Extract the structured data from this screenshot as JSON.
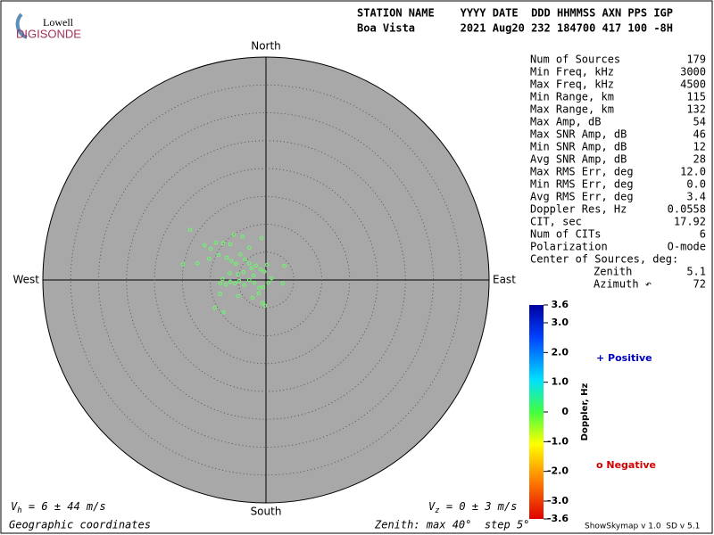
{
  "logo": {
    "top": "Lowell",
    "bottom": "DIGISONDE"
  },
  "header": {
    "line1": "STATION NAME    YYYY DATE  DDD HHMMSS AXN PPS IGP",
    "line2": "Boa Vista       2021 Aug20 232 184700 417 100 -8H"
  },
  "stats": [
    [
      "Num of Sources",
      "179"
    ],
    [
      "Min Freq, kHz",
      "3000"
    ],
    [
      "Max Freq, kHz",
      "4500"
    ],
    [
      "Min Range, km",
      "115"
    ],
    [
      "Max Range, km",
      "132"
    ],
    [
      "Max Amp, dB",
      "54"
    ],
    [
      "Max SNR Amp, dB",
      "46"
    ],
    [
      "Min SNR Amp, dB",
      "12"
    ],
    [
      "Avg SNR Amp, dB",
      "28"
    ],
    [
      "Max RMS Err, deg",
      "12.0"
    ],
    [
      "Min RMS Err, deg",
      "0.0"
    ],
    [
      "Avg RMS Err, deg",
      "3.4"
    ],
    [
      "Doppler Res, Hz",
      "0.0558"
    ],
    [
      "CIT, sec",
      "17.92"
    ],
    [
      "Num of CITs",
      "6"
    ],
    [
      "Polarization",
      "O-mode"
    ]
  ],
  "center": {
    "title": "Center of Sources, deg:",
    "rows": [
      [
        "Zenith",
        "5.1"
      ],
      [
        "Azimuth ↶",
        "72"
      ]
    ]
  },
  "directions": {
    "north": "North",
    "south": "South",
    "east": "East",
    "west": "West"
  },
  "footer": {
    "vh": [
      "V",
      "h",
      " = 6 ± 44 m/s"
    ],
    "vz": [
      "V",
      "z",
      " = 0 ± 3 m/s"
    ],
    "coords": "Geographic coordinates",
    "zenith": "Zenith: max 40°  step 5°",
    "version": "ShowSkymap v 1.0  SD v 5.1"
  },
  "colorbar": {
    "title": "Doppler, Hz",
    "lim": [
      -3.6,
      3.6
    ],
    "ticks": [
      3.6,
      {
        "value": 3,
        "label": "3.0"
      },
      {
        "value": 2,
        "label": "2.0"
      },
      {
        "value": 1,
        "label": "1.0"
      },
      0,
      {
        "value": -1,
        "label": "-1.0"
      },
      {
        "value": -2,
        "label": "-2.0"
      },
      {
        "value": -3,
        "label": "-3.0"
      },
      -3.6
    ],
    "positive": "+ Positive",
    "negative": "o Negative"
  },
  "chart_data": {
    "type": "scatter",
    "xlim": [
      -40,
      40
    ],
    "ylim": [
      -40,
      40
    ],
    "rings": [
      5,
      10,
      15,
      20,
      25,
      30,
      35
    ],
    "color": "#66ff66",
    "x": [
      -13.6,
      -14.9,
      -12.3,
      -11.0,
      -10.2,
      -9.9,
      -9.0,
      -8.5,
      -7.7,
      -6.4,
      -4.2,
      -7.0,
      -6.2,
      -5.4,
      -4.6,
      -3.8,
      -3.0,
      -2.6,
      -1.8,
      -1.0,
      -0.3,
      0.2,
      -2.2,
      -4.0,
      -5.0,
      -6.5,
      -7.8,
      -8.2,
      -7.2,
      -6.4,
      -5.6,
      -4.8,
      -3.9,
      -3.0,
      -2.1,
      -1.2,
      -0.5,
      0.4,
      1.0,
      3.3,
      3.0,
      -5.0,
      -2.4,
      -1.3,
      -0.6,
      -0.2,
      -8.2,
      -9.2,
      -7.6,
      -3.0,
      -0.8,
      -5.8
    ],
    "y": [
      9.0,
      2.8,
      3.0,
      6.2,
      3.8,
      5.6,
      6.7,
      4.5,
      6.6,
      6.4,
      7.8,
      4.0,
      3.4,
      2.9,
      4.6,
      3.7,
      3.0,
      2.1,
      2.6,
      1.9,
      1.5,
      2.7,
      0.8,
      1.4,
      1.0,
      1.2,
      0.2,
      -0.6,
      -0.8,
      -0.3,
      -0.6,
      -0.2,
      -0.9,
      0.0,
      -0.5,
      -1.4,
      -1.3,
      -0.5,
      0.3,
      2.5,
      -0.6,
      -2.9,
      -3.2,
      -2.4,
      -4.1,
      -4.6,
      -2.5,
      -5.0,
      -5.8,
      5.8,
      7.5,
      8.1
    ]
  }
}
